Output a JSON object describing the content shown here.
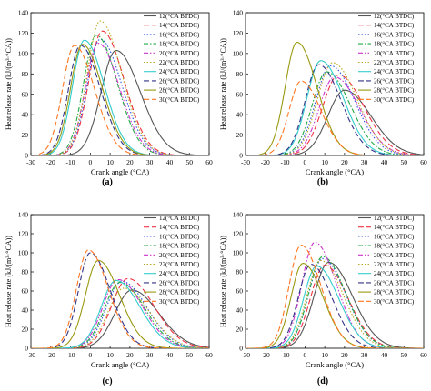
{
  "figure": {
    "panel_labels": [
      "(a)",
      "(b)",
      "(c)",
      "(d)"
    ]
  },
  "style": {
    "series_colors": [
      "#555555",
      "#ee3344",
      "#3355dd",
      "#22aa44",
      "#cc33cc",
      "#bbaa22",
      "#33cccc",
      "#333388",
      "#999911",
      "#ff7722"
    ],
    "series_dashes": [
      "",
      "6,3",
      "1.5,2",
      "5,2,1.5,2",
      "5,2,1.5,2,1.5,2",
      "1.5,2",
      "",
      "6,3",
      "",
      "6,3"
    ]
  },
  "chart_data": [
    {
      "type": "line",
      "title": "",
      "xlabel": "Crank angle (°CA)",
      "ylabel": "Heat release rate (kJ/(m³·°CA))",
      "xlim": [
        -30,
        60
      ],
      "ylim": [
        0,
        140
      ],
      "xticks": [
        -30,
        -20,
        -10,
        0,
        10,
        20,
        30,
        40,
        50,
        60
      ],
      "yticks": [
        0,
        20,
        40,
        60,
        80,
        100,
        120,
        140
      ],
      "legend_position": "top-right",
      "series": [
        {
          "name": "12(°CA BTDC)",
          "peak_x": 13,
          "peak_y": 103
        },
        {
          "name": "14(°CA BTDC)",
          "peak_x": 6,
          "peak_y": 122
        },
        {
          "name": "16(°CA BTDC)",
          "peak_x": 5,
          "peak_y": 114
        },
        {
          "name": "18(°CA BTDC)",
          "peak_x": 3,
          "peak_y": 118
        },
        {
          "name": "20(°CA BTDC)",
          "peak_x": 4,
          "peak_y": 110
        },
        {
          "name": "22(°CA BTDC)",
          "peak_x": 5,
          "peak_y": 132
        },
        {
          "name": "24(°CA BTDC)",
          "peak_x": -3,
          "peak_y": 113
        },
        {
          "name": "26(°CA BTDC)",
          "peak_x": -5,
          "peak_y": 108
        },
        {
          "name": "28(°CA BTDC)",
          "peak_x": -4,
          "peak_y": 109
        },
        {
          "name": "30(°CA BTDC)",
          "peak_x": -8,
          "peak_y": 108
        }
      ]
    },
    {
      "type": "line",
      "title": "",
      "xlabel": "Crank angle (°CA)",
      "ylabel": "Heat release rate (kJ/(m³·°CA))",
      "xlim": [
        -30,
        60
      ],
      "ylim": [
        0,
        140
      ],
      "xticks": [
        -30,
        -20,
        -10,
        0,
        10,
        20,
        30,
        40,
        50,
        60
      ],
      "yticks": [
        0,
        20,
        40,
        60,
        80,
        100,
        120,
        140
      ],
      "legend_position": "top-right",
      "series": [
        {
          "name": "12(°CA BTDC)",
          "peak_x": 20,
          "peak_y": 64
        },
        {
          "name": "14(°CA BTDC)",
          "peak_x": 17,
          "peak_y": 79
        },
        {
          "name": "16(°CA BTDC)",
          "peak_x": 13,
          "peak_y": 88
        },
        {
          "name": "18(°CA BTDC)",
          "peak_x": 11,
          "peak_y": 82
        },
        {
          "name": "20(°CA BTDC)",
          "peak_x": 15,
          "peak_y": 77
        },
        {
          "name": "22(°CA BTDC)",
          "peak_x": 14,
          "peak_y": 91
        },
        {
          "name": "24(°CA BTDC)",
          "peak_x": 8,
          "peak_y": 93
        },
        {
          "name": "26(°CA BTDC)",
          "peak_x": 7,
          "peak_y": 89
        },
        {
          "name": "28(°CA BTDC)",
          "peak_x": -4,
          "peak_y": 111
        },
        {
          "name": "30(°CA BTDC)",
          "peak_x": -2,
          "peak_y": 73
        }
      ]
    },
    {
      "type": "line",
      "title": "",
      "xlabel": "Crank angle (°CA)",
      "ylabel": "Heat release rate (kJ/(m³·°CA))",
      "xlim": [
        -30,
        60
      ],
      "ylim": [
        0,
        140
      ],
      "xticks": [
        -30,
        -20,
        -10,
        0,
        10,
        20,
        30,
        40,
        50,
        60
      ],
      "yticks": [
        0,
        20,
        40,
        60,
        80,
        100,
        120,
        140
      ],
      "legend_position": "top-right",
      "series": [
        {
          "name": "12(°CA BTDC)",
          "peak_x": 21,
          "peak_y": 61
        },
        {
          "name": "14(°CA BTDC)",
          "peak_x": 19,
          "peak_y": 73
        },
        {
          "name": "16(°CA BTDC)",
          "peak_x": 16,
          "peak_y": 70
        },
        {
          "name": "18(°CA BTDC)",
          "peak_x": 15,
          "peak_y": 69
        },
        {
          "name": "20(°CA BTDC)",
          "peak_x": 14,
          "peak_y": 72
        },
        {
          "name": "22(°CA BTDC)",
          "peak_x": 17,
          "peak_y": 63
        },
        {
          "name": "24(°CA BTDC)",
          "peak_x": 13,
          "peak_y": 71
        },
        {
          "name": "26(°CA BTDC)",
          "peak_x": 0,
          "peak_y": 100
        },
        {
          "name": "28(°CA BTDC)",
          "peak_x": 4,
          "peak_y": 92
        },
        {
          "name": "30(°CA BTDC)",
          "peak_x": -1,
          "peak_y": 103
        }
      ]
    },
    {
      "type": "line",
      "title": "",
      "xlabel": "Crank angle (°CA)",
      "ylabel": "Heat release rate (kJ/(m³·°CA))",
      "xlim": [
        -30,
        60
      ],
      "ylim": [
        0,
        140
      ],
      "xticks": [
        -30,
        -20,
        -10,
        0,
        10,
        20,
        30,
        40,
        50,
        60
      ],
      "yticks": [
        0,
        20,
        40,
        60,
        80,
        100,
        120,
        140
      ],
      "legend_position": "top-right",
      "series": [
        {
          "name": "12(°CA BTDC)",
          "peak_x": 12,
          "peak_y": 90
        },
        {
          "name": "14(°CA BTDC)",
          "peak_x": 10,
          "peak_y": 87
        },
        {
          "name": "16(°CA BTDC)",
          "peak_x": 9,
          "peak_y": 94
        },
        {
          "name": "18(°CA BTDC)",
          "peak_x": 9,
          "peak_y": 96
        },
        {
          "name": "20(°CA BTDC)",
          "peak_x": 5,
          "peak_y": 111
        },
        {
          "name": "22(°CA BTDC)",
          "peak_x": 8,
          "peak_y": 92
        },
        {
          "name": "24(°CA BTDC)",
          "peak_x": 6,
          "peak_y": 86
        },
        {
          "name": "26(°CA BTDC)",
          "peak_x": 3,
          "peak_y": 88
        },
        {
          "name": "28(°CA BTDC)",
          "peak_x": -1,
          "peak_y": 89
        },
        {
          "name": "30(°CA BTDC)",
          "peak_x": -2,
          "peak_y": 108
        }
      ]
    }
  ]
}
